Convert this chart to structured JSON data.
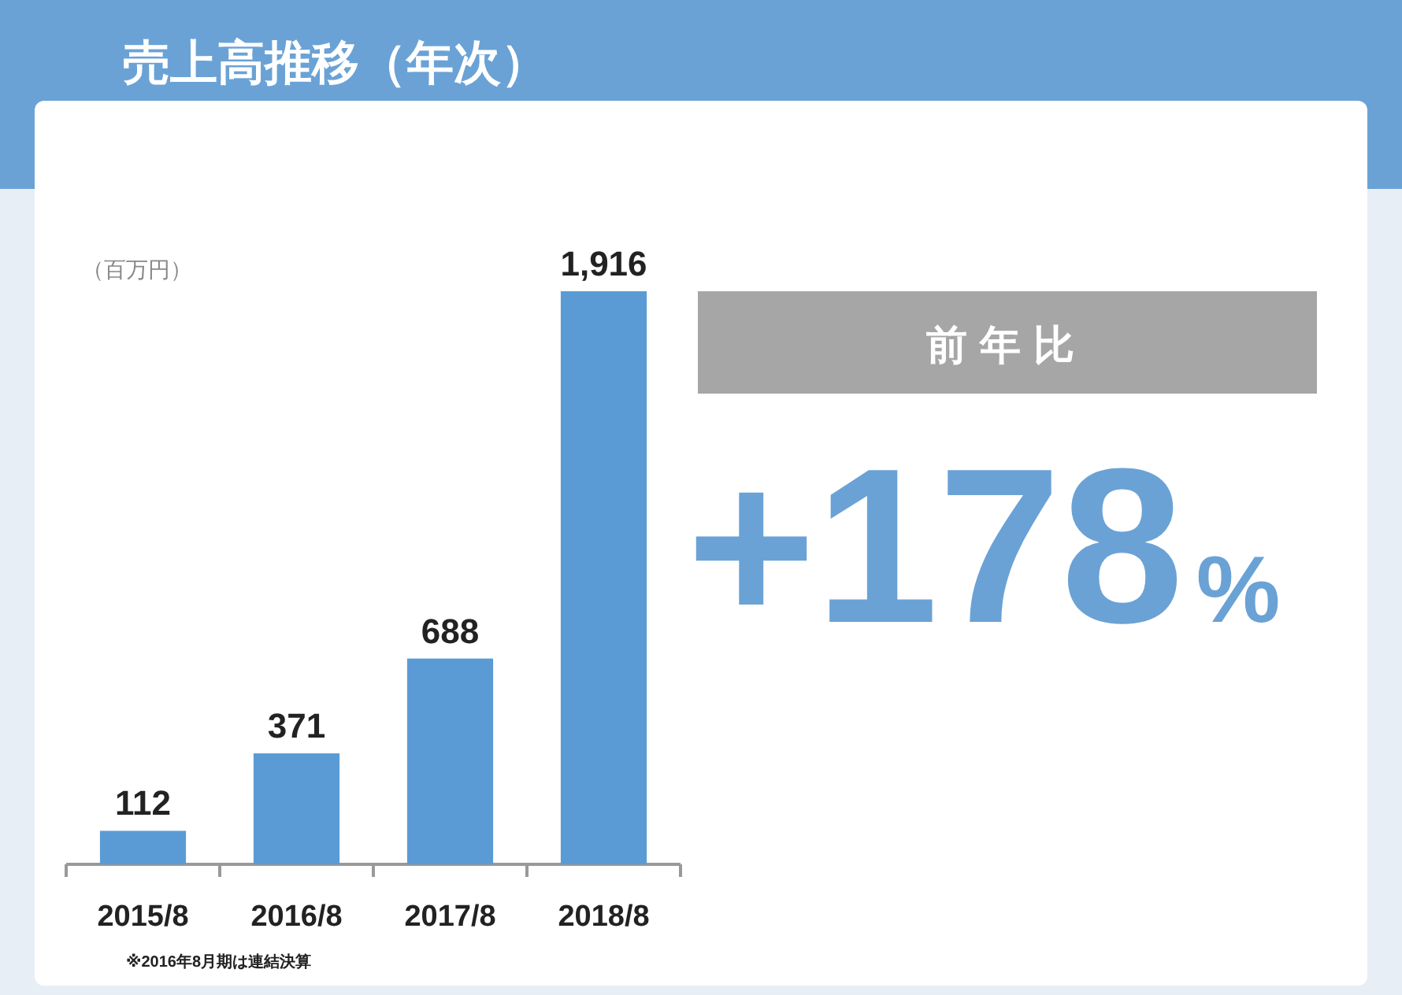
{
  "chart_data": [
    {
      "type": "bar",
      "title": "売上高推移（年次）",
      "ylabel": "（百万円）",
      "categories": [
        "2015/8",
        "2016/8",
        "2017/8",
        "2018/8"
      ],
      "values": [
        112,
        371,
        688,
        1916
      ],
      "color": "#5b9bd5",
      "value_labels": [
        "112",
        "371",
        "688",
        "1,916"
      ],
      "annotations": [
        "※2016年8月期は連結決算"
      ]
    },
    {
      "type": "other",
      "title": "前年比",
      "annotations": [
        "+178%"
      ]
    }
  ]
}
